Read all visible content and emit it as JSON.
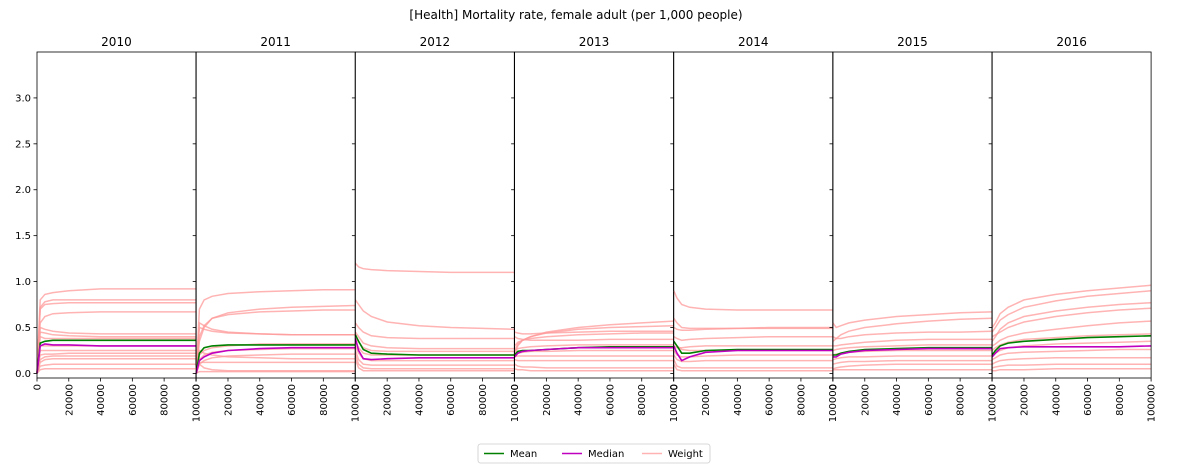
{
  "chart_data": {
    "type": "line",
    "title": "[Health] Mortality rate, female adult (per 1,000 people)",
    "panels": [
      "2010",
      "2011",
      "2012",
      "2013",
      "2014",
      "2015",
      "2016"
    ],
    "xlim": [
      0,
      100000
    ],
    "ylim": [
      -0.05,
      3.5
    ],
    "xticks": [
      0,
      20000,
      40000,
      60000,
      80000,
      100000
    ],
    "yticks": [
      0.0,
      0.5,
      1.0,
      1.5,
      2.0,
      2.5,
      3.0
    ],
    "ytick_labels": [
      "0.0",
      "0.5",
      "1.0",
      "1.5",
      "2.0",
      "2.5",
      "3.0"
    ],
    "grid": false,
    "legend_position": "bottom-center",
    "colors": {
      "mean": "#008000",
      "median": "#bf00bf",
      "weight": "#ff9999"
    },
    "legend": [
      {
        "key": "mean",
        "label": "Mean"
      },
      {
        "key": "median",
        "label": "Median"
      },
      {
        "key": "weight",
        "label": "Weight"
      }
    ],
    "sample_x": [
      0,
      2000,
      5000,
      10000,
      20000,
      40000,
      60000,
      80000,
      100000
    ],
    "series": [
      {
        "panel": "2010",
        "mean": [
          0.0,
          0.33,
          0.35,
          0.36,
          0.36,
          0.36,
          0.36,
          0.36,
          0.36
        ],
        "median": [
          0.0,
          0.3,
          0.32,
          0.31,
          0.31,
          0.3,
          0.3,
          0.3,
          0.3
        ],
        "weight": [
          [
            0.0,
            0.8,
            0.86,
            0.88,
            0.9,
            0.92,
            0.92,
            0.92,
            0.92
          ],
          [
            0.0,
            0.72,
            0.78,
            0.8,
            0.8,
            0.8,
            0.8,
            0.8,
            0.8
          ],
          [
            0.0,
            0.7,
            0.75,
            0.76,
            0.77,
            0.77,
            0.77,
            0.77,
            0.77
          ],
          [
            0.0,
            0.55,
            0.62,
            0.65,
            0.66,
            0.67,
            0.67,
            0.67,
            0.67
          ],
          [
            0.0,
            0.5,
            0.48,
            0.46,
            0.44,
            0.43,
            0.43,
            0.43,
            0.43
          ],
          [
            0.0,
            0.45,
            0.44,
            0.42,
            0.41,
            0.4,
            0.4,
            0.4,
            0.4
          ],
          [
            0.0,
            0.4,
            0.38,
            0.38,
            0.38,
            0.38,
            0.38,
            0.38,
            0.38
          ],
          [
            0.0,
            0.3,
            0.3,
            0.3,
            0.3,
            0.3,
            0.3,
            0.3,
            0.3
          ],
          [
            0.0,
            0.25,
            0.25,
            0.25,
            0.25,
            0.25,
            0.25,
            0.25,
            0.25
          ],
          [
            0.0,
            0.2,
            0.21,
            0.21,
            0.22,
            0.22,
            0.22,
            0.22,
            0.22
          ],
          [
            0.0,
            0.15,
            0.18,
            0.19,
            0.19,
            0.19,
            0.19,
            0.19,
            0.19
          ],
          [
            0.0,
            0.12,
            0.15,
            0.16,
            0.16,
            0.16,
            0.16,
            0.16,
            0.16
          ],
          [
            0.0,
            0.08,
            0.09,
            0.1,
            0.1,
            0.1,
            0.1,
            0.1,
            0.1
          ],
          [
            0.0,
            0.04,
            0.05,
            0.05,
            0.05,
            0.05,
            0.05,
            0.05,
            0.05
          ]
        ]
      },
      {
        "panel": "2011",
        "mean": [
          0.0,
          0.22,
          0.28,
          0.3,
          0.31,
          0.31,
          0.31,
          0.31,
          0.31
        ],
        "median": [
          0.0,
          0.14,
          0.18,
          0.22,
          0.25,
          0.27,
          0.28,
          0.28,
          0.28
        ],
        "weight": [
          [
            0.0,
            0.7,
            0.8,
            0.84,
            0.87,
            0.89,
            0.9,
            0.91,
            0.91
          ],
          [
            0.0,
            0.35,
            0.5,
            0.6,
            0.66,
            0.7,
            0.72,
            0.73,
            0.74
          ],
          [
            0.0,
            0.4,
            0.52,
            0.6,
            0.64,
            0.67,
            0.68,
            0.69,
            0.69
          ],
          [
            0.0,
            0.55,
            0.52,
            0.48,
            0.45,
            0.43,
            0.42,
            0.42,
            0.42
          ],
          [
            0.0,
            0.5,
            0.48,
            0.46,
            0.44,
            0.43,
            0.42,
            0.42,
            0.42
          ],
          [
            0.0,
            0.2,
            0.25,
            0.28,
            0.3,
            0.32,
            0.32,
            0.32,
            0.32
          ],
          [
            0.0,
            0.15,
            0.2,
            0.23,
            0.25,
            0.26,
            0.27,
            0.27,
            0.27
          ],
          [
            0.0,
            0.1,
            0.14,
            0.17,
            0.19,
            0.2,
            0.21,
            0.21,
            0.21
          ],
          [
            0.0,
            0.25,
            0.22,
            0.2,
            0.18,
            0.17,
            0.16,
            0.16,
            0.16
          ],
          [
            0.0,
            0.12,
            0.12,
            0.12,
            0.12,
            0.12,
            0.12,
            0.12,
            0.12
          ],
          [
            0.0,
            0.1,
            0.06,
            0.04,
            0.03,
            0.03,
            0.03,
            0.03,
            0.03
          ],
          [
            0.0,
            0.02,
            0.02,
            0.02,
            0.02,
            0.02,
            0.02,
            0.02,
            0.02
          ]
        ]
      },
      {
        "panel": "2012",
        "mean": [
          0.42,
          0.35,
          0.26,
          0.22,
          0.21,
          0.2,
          0.2,
          0.2,
          0.2
        ],
        "median": [
          0.38,
          0.25,
          0.16,
          0.15,
          0.16,
          0.17,
          0.17,
          0.17,
          0.17
        ],
        "weight": [
          [
            1.2,
            1.16,
            1.14,
            1.13,
            1.12,
            1.11,
            1.1,
            1.1,
            1.1
          ],
          [
            0.8,
            0.75,
            0.68,
            0.62,
            0.56,
            0.52,
            0.5,
            0.49,
            0.48
          ],
          [
            0.55,
            0.5,
            0.45,
            0.41,
            0.39,
            0.38,
            0.38,
            0.38,
            0.38
          ],
          [
            0.45,
            0.4,
            0.33,
            0.3,
            0.28,
            0.27,
            0.27,
            0.27,
            0.27
          ],
          [
            0.4,
            0.34,
            0.28,
            0.25,
            0.24,
            0.24,
            0.24,
            0.24,
            0.24
          ],
          [
            0.35,
            0.28,
            0.22,
            0.2,
            0.2,
            0.2,
            0.2,
            0.2,
            0.2
          ],
          [
            0.3,
            0.22,
            0.16,
            0.14,
            0.14,
            0.14,
            0.14,
            0.14,
            0.14
          ],
          [
            0.25,
            0.15,
            0.1,
            0.09,
            0.09,
            0.09,
            0.09,
            0.09,
            0.09
          ],
          [
            0.2,
            0.1,
            0.06,
            0.05,
            0.05,
            0.05,
            0.05,
            0.05,
            0.05
          ],
          [
            0.15,
            0.06,
            0.03,
            0.03,
            0.03,
            0.03,
            0.03,
            0.03,
            0.03
          ]
        ]
      },
      {
        "panel": "2013",
        "mean": [
          0.2,
          0.24,
          0.25,
          0.25,
          0.26,
          0.28,
          0.29,
          0.29,
          0.29
        ],
        "median": [
          0.18,
          0.22,
          0.24,
          0.25,
          0.26,
          0.28,
          0.28,
          0.28,
          0.28
        ],
        "weight": [
          [
            0.2,
            0.3,
            0.36,
            0.4,
            0.45,
            0.5,
            0.53,
            0.55,
            0.57
          ],
          [
            0.25,
            0.32,
            0.36,
            0.4,
            0.44,
            0.48,
            0.5,
            0.51,
            0.52
          ],
          [
            0.45,
            0.44,
            0.43,
            0.43,
            0.44,
            0.45,
            0.46,
            0.46,
            0.46
          ],
          [
            0.3,
            0.34,
            0.36,
            0.38,
            0.4,
            0.42,
            0.43,
            0.44,
            0.44
          ],
          [
            0.4,
            0.38,
            0.37,
            0.36,
            0.36,
            0.36,
            0.37,
            0.37,
            0.37
          ],
          [
            0.25,
            0.27,
            0.28,
            0.29,
            0.3,
            0.31,
            0.31,
            0.31,
            0.31
          ],
          [
            0.2,
            0.22,
            0.23,
            0.24,
            0.24,
            0.25,
            0.25,
            0.25,
            0.25
          ],
          [
            0.18,
            0.19,
            0.19,
            0.19,
            0.19,
            0.19,
            0.19,
            0.19,
            0.19
          ],
          [
            0.15,
            0.14,
            0.14,
            0.14,
            0.14,
            0.14,
            0.14,
            0.14,
            0.14
          ],
          [
            0.1,
            0.08,
            0.07,
            0.07,
            0.06,
            0.06,
            0.06,
            0.06,
            0.06
          ],
          [
            0.05,
            0.04,
            0.04,
            0.03,
            0.03,
            0.03,
            0.03,
            0.03,
            0.03
          ]
        ]
      },
      {
        "panel": "2014",
        "mean": [
          0.35,
          0.3,
          0.22,
          0.22,
          0.25,
          0.26,
          0.26,
          0.26,
          0.26
        ],
        "median": [
          0.3,
          0.22,
          0.14,
          0.18,
          0.23,
          0.25,
          0.25,
          0.25,
          0.25
        ],
        "weight": [
          [
            0.9,
            0.82,
            0.75,
            0.72,
            0.7,
            0.69,
            0.69,
            0.69,
            0.69
          ],
          [
            0.6,
            0.55,
            0.5,
            0.49,
            0.49,
            0.49,
            0.49,
            0.49,
            0.49
          ],
          [
            0.5,
            0.48,
            0.47,
            0.47,
            0.48,
            0.49,
            0.5,
            0.5,
            0.5
          ],
          [
            0.4,
            0.38,
            0.36,
            0.37,
            0.38,
            0.39,
            0.4,
            0.4,
            0.4
          ],
          [
            0.3,
            0.28,
            0.28,
            0.29,
            0.3,
            0.3,
            0.3,
            0.3,
            0.3
          ],
          [
            0.35,
            0.3,
            0.26,
            0.25,
            0.25,
            0.25,
            0.25,
            0.25,
            0.25
          ],
          [
            0.25,
            0.2,
            0.18,
            0.18,
            0.19,
            0.2,
            0.2,
            0.2,
            0.2
          ],
          [
            0.2,
            0.15,
            0.13,
            0.13,
            0.14,
            0.14,
            0.14,
            0.14,
            0.14
          ],
          [
            0.15,
            0.08,
            0.06,
            0.06,
            0.06,
            0.06,
            0.06,
            0.06,
            0.06
          ],
          [
            0.1,
            0.04,
            0.03,
            0.03,
            0.03,
            0.03,
            0.03,
            0.03,
            0.03
          ]
        ]
      },
      {
        "panel": "2015",
        "mean": [
          0.2,
          0.2,
          0.22,
          0.24,
          0.26,
          0.27,
          0.28,
          0.28,
          0.28
        ],
        "median": [
          0.18,
          0.18,
          0.21,
          0.23,
          0.25,
          0.26,
          0.27,
          0.27,
          0.27
        ],
        "weight": [
          [
            0.55,
            0.5,
            0.52,
            0.55,
            0.58,
            0.62,
            0.64,
            0.66,
            0.67
          ],
          [
            0.35,
            0.38,
            0.42,
            0.46,
            0.5,
            0.54,
            0.57,
            0.59,
            0.6
          ],
          [
            0.4,
            0.38,
            0.38,
            0.4,
            0.42,
            0.44,
            0.45,
            0.45,
            0.46
          ],
          [
            0.3,
            0.3,
            0.31,
            0.32,
            0.34,
            0.36,
            0.37,
            0.37,
            0.37
          ],
          [
            0.25,
            0.26,
            0.27,
            0.28,
            0.29,
            0.3,
            0.31,
            0.31,
            0.31
          ],
          [
            0.2,
            0.21,
            0.22,
            0.23,
            0.24,
            0.25,
            0.25,
            0.25,
            0.25
          ],
          [
            0.15,
            0.16,
            0.17,
            0.18,
            0.18,
            0.19,
            0.19,
            0.19,
            0.19
          ],
          [
            0.1,
            0.11,
            0.12,
            0.13,
            0.13,
            0.14,
            0.14,
            0.14,
            0.14
          ],
          [
            0.05,
            0.06,
            0.07,
            0.08,
            0.09,
            0.1,
            0.1,
            0.1,
            0.1
          ],
          [
            0.04,
            0.04,
            0.04,
            0.04,
            0.04,
            0.04,
            0.04,
            0.04,
            0.04
          ]
        ]
      },
      {
        "panel": "2016",
        "mean": [
          0.2,
          0.25,
          0.3,
          0.33,
          0.35,
          0.37,
          0.39,
          0.4,
          0.41
        ],
        "median": [
          0.18,
          0.22,
          0.27,
          0.28,
          0.29,
          0.29,
          0.29,
          0.29,
          0.3
        ],
        "weight": [
          [
            0.5,
            0.55,
            0.65,
            0.72,
            0.8,
            0.86,
            0.9,
            0.93,
            0.96
          ],
          [
            0.45,
            0.5,
            0.58,
            0.64,
            0.72,
            0.79,
            0.84,
            0.87,
            0.9
          ],
          [
            0.35,
            0.4,
            0.48,
            0.55,
            0.62,
            0.68,
            0.72,
            0.75,
            0.77
          ],
          [
            0.4,
            0.42,
            0.45,
            0.5,
            0.56,
            0.62,
            0.66,
            0.69,
            0.71
          ],
          [
            0.3,
            0.32,
            0.36,
            0.4,
            0.44,
            0.48,
            0.52,
            0.55,
            0.57
          ],
          [
            0.25,
            0.28,
            0.31,
            0.34,
            0.37,
            0.39,
            0.41,
            0.42,
            0.43
          ],
          [
            0.2,
            0.22,
            0.25,
            0.28,
            0.3,
            0.32,
            0.33,
            0.34,
            0.35
          ],
          [
            0.15,
            0.17,
            0.2,
            0.22,
            0.23,
            0.24,
            0.25,
            0.26,
            0.26
          ],
          [
            0.1,
            0.12,
            0.14,
            0.15,
            0.16,
            0.17,
            0.17,
            0.17,
            0.17
          ],
          [
            0.06,
            0.07,
            0.08,
            0.09,
            0.09,
            0.1,
            0.1,
            0.1,
            0.1
          ],
          [
            0.03,
            0.03,
            0.04,
            0.04,
            0.04,
            0.05,
            0.05,
            0.05,
            0.05
          ]
        ]
      }
    ]
  }
}
